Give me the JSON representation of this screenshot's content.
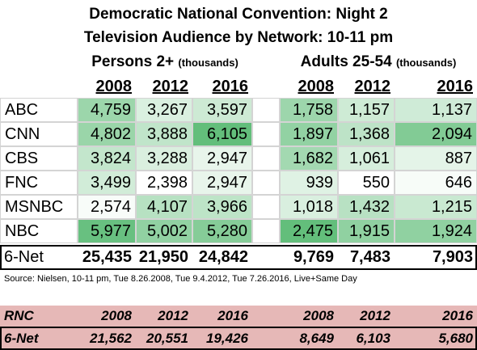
{
  "title_line1": "Democratic National Convention: Night 2",
  "title_line2": "Television Audience by Network: 10-11 pm",
  "groups": [
    {
      "label": "Persons 2+",
      "unit": "(thousands)"
    },
    {
      "label": "Adults 25-54",
      "unit": "(thousands)"
    }
  ],
  "years": [
    "2008",
    "2012",
    "2016"
  ],
  "source": "Source: Nielsen, 10-11 pm, Tue 8.26.2008, Tue 9.4.2012, Tue 7.26.2016, Live+Same Day",
  "colors": {
    "scale_low": "#ffffff",
    "scale_high": "#63be7b",
    "rnc_fill": "#e6b8b7"
  },
  "chart_data": {
    "type": "table",
    "rows": [
      {
        "network": "ABC",
        "persons": [
          "4,759",
          "3,267",
          "3,597"
        ],
        "adults": [
          "1,758",
          "1,157",
          "1,137"
        ]
      },
      {
        "network": "CNN",
        "persons": [
          "4,802",
          "3,888",
          "6,105"
        ],
        "adults": [
          "1,897",
          "1,368",
          "2,094"
        ]
      },
      {
        "network": "CBS",
        "persons": [
          "3,824",
          "3,288",
          "2,947"
        ],
        "adults": [
          "1,682",
          "1,061",
          "887"
        ]
      },
      {
        "network": "FNC",
        "persons": [
          "3,499",
          "2,398",
          "2,947"
        ],
        "adults": [
          "939",
          "550",
          "646"
        ]
      },
      {
        "network": "MSNBC",
        "persons": [
          "2,574",
          "4,107",
          "3,966"
        ],
        "adults": [
          "1,018",
          "1,432",
          "1,215"
        ]
      },
      {
        "network": "NBC",
        "persons": [
          "5,977",
          "5,002",
          "5,280"
        ],
        "adults": [
          "2,475",
          "1,915",
          "1,924"
        ]
      }
    ],
    "total": {
      "label": "6-Net",
      "persons": [
        "25,435",
        "21,950",
        "24,842"
      ],
      "adults": [
        "9,769",
        "7,483",
        "7,903"
      ]
    },
    "rnc": {
      "label": "RNC",
      "years": [
        "2008",
        "2012",
        "2016",
        "2008",
        "2012",
        "2016"
      ],
      "total_label": "6-Net",
      "values": [
        "21,562",
        "20,551",
        "19,426",
        "8,649",
        "6,103",
        "5,680"
      ]
    }
  }
}
